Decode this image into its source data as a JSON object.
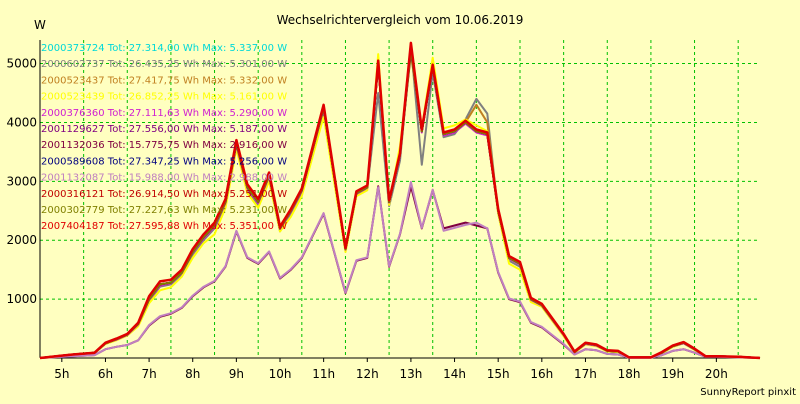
{
  "chart_data": {
    "type": "line",
    "title": "Wechselrichtervergleich vom 10.06.2019",
    "ylabel": "W",
    "xlabel": "",
    "footer": "SunnyReport pinxit",
    "ylim": [
      0,
      5400
    ],
    "xlim": [
      4.5,
      21
    ],
    "grid": true,
    "legend_position": "top-left",
    "yticks": [
      1000,
      2000,
      3000,
      4000,
      5000
    ],
    "xticks": [
      {
        "v": 5,
        "label": "5h"
      },
      {
        "v": 6,
        "label": "6h"
      },
      {
        "v": 7,
        "label": "7h"
      },
      {
        "v": 8,
        "label": "8h"
      },
      {
        "v": 9,
        "label": "9h"
      },
      {
        "v": 10,
        "label": "10h"
      },
      {
        "v": 11,
        "label": "11h"
      },
      {
        "v": 12,
        "label": "12h"
      },
      {
        "v": 13,
        "label": "13h"
      },
      {
        "v": 14,
        "label": "14h"
      },
      {
        "v": 15,
        "label": "15h"
      },
      {
        "v": 16,
        "label": "16h"
      },
      {
        "v": 17,
        "label": "17h"
      },
      {
        "v": 18,
        "label": "18h"
      },
      {
        "v": 19,
        "label": "19h"
      },
      {
        "v": 20,
        "label": "20h"
      }
    ],
    "x": [
      4.5,
      5.0,
      5.25,
      5.75,
      6.0,
      6.25,
      6.5,
      6.75,
      7.0,
      7.25,
      7.5,
      7.75,
      8.0,
      8.25,
      8.5,
      8.75,
      9.0,
      9.25,
      9.5,
      9.75,
      10.0,
      10.25,
      10.5,
      11.0,
      11.5,
      11.75,
      12.0,
      12.25,
      12.5,
      12.75,
      13.0,
      13.25,
      13.5,
      13.75,
      14.0,
      14.25,
      14.5,
      14.75,
      15.0,
      15.25,
      15.5,
      15.75,
      16.0,
      16.5,
      16.75,
      17.0,
      17.25,
      17.5,
      17.75,
      18.0,
      18.5,
      18.75,
      19.0,
      19.25,
      19.5,
      19.75,
      20.0,
      20.5,
      21.0
    ],
    "series": [
      {
        "name": "2000373724 Tot: 27.314,00 Wh Max: 5.337,00 W",
        "color": "#00d8d8",
        "values": [
          0,
          40,
          60,
          90,
          250,
          320,
          400,
          580,
          1000,
          1250,
          1280,
          1450,
          1800,
          2050,
          2250,
          2650,
          3650,
          2900,
          2650,
          3100,
          2200,
          2500,
          2850,
          4250,
          1850,
          2800,
          2900,
          5000,
          2650,
          3450,
          5337,
          3850,
          4950,
          3800,
          3850,
          4000,
          3850,
          3800,
          2500,
          1700,
          1600,
          1000,
          900,
          400,
          100,
          250,
          220,
          120,
          110,
          10,
          10,
          90,
          200,
          260,
          150,
          30,
          30,
          20,
          0
        ]
      },
      {
        "name": "2000602737 Tot: 26.435,25 Wh Max: 5.301,00 W",
        "color": "#808080",
        "values": [
          0,
          40,
          60,
          80,
          240,
          310,
          390,
          560,
          970,
          1210,
          1250,
          1420,
          1760,
          2000,
          2200,
          2600,
          3600,
          2850,
          2600,
          3050,
          2150,
          2450,
          2800,
          4200,
          1820,
          2780,
          2880,
          4500,
          2580,
          3350,
          5301,
          3280,
          4850,
          3750,
          3800,
          4050,
          4400,
          4150,
          2450,
          1650,
          1550,
          960,
          880,
          380,
          90,
          240,
          210,
          110,
          100,
          10,
          10,
          80,
          190,
          250,
          140,
          30,
          30,
          20,
          0
        ]
      },
      {
        "name": "2000523437 Tot: 27.417,75 Wh Max: 5.332,00 W",
        "color": "#c08020",
        "values": [
          0,
          40,
          60,
          90,
          250,
          320,
          400,
          580,
          1000,
          1250,
          1280,
          1450,
          1800,
          2050,
          2250,
          2650,
          3650,
          2900,
          2650,
          3100,
          2200,
          2500,
          2850,
          4250,
          1850,
          2800,
          2900,
          5000,
          2650,
          3450,
          5332,
          3850,
          4950,
          3800,
          3850,
          4000,
          4300,
          4000,
          2500,
          1700,
          1600,
          1000,
          900,
          400,
          100,
          250,
          220,
          120,
          110,
          10,
          10,
          90,
          200,
          260,
          150,
          30,
          30,
          20,
          0
        ]
      },
      {
        "name": "2000523439 Tot: 26.852,25 Wh Max: 5.161,00 W",
        "color": "#ffff00",
        "values": [
          0,
          40,
          55,
          85,
          240,
          300,
          380,
          540,
          930,
          1150,
          1200,
          1380,
          1700,
          1950,
          2100,
          2550,
          3550,
          2800,
          2550,
          3000,
          2150,
          2400,
          2750,
          4100,
          1800,
          2750,
          2850,
          5161,
          2600,
          3600,
          5150,
          3900,
          5100,
          3900,
          3950,
          4050,
          3950,
          3850,
          2450,
          1600,
          1500,
          950,
          870,
          370,
          90,
          230,
          200,
          110,
          100,
          10,
          10,
          80,
          190,
          250,
          140,
          30,
          30,
          20,
          0
        ]
      },
      {
        "name": "2000376360 Tot: 27.111,63 Wh Max: 5.290,00 W",
        "color": "#d020d0",
        "values": [
          0,
          40,
          60,
          90,
          250,
          310,
          390,
          570,
          990,
          1230,
          1270,
          1440,
          1790,
          2030,
          2230,
          2630,
          3620,
          2880,
          2630,
          3080,
          2190,
          2480,
          2830,
          4230,
          1840,
          2790,
          2890,
          4980,
          2640,
          3430,
          5290,
          3830,
          4930,
          3780,
          3830,
          3980,
          3830,
          3780,
          2490,
          1690,
          1590,
          990,
          890,
          390,
          100,
          240,
          210,
          120,
          110,
          10,
          10,
          90,
          200,
          250,
          150,
          30,
          30,
          20,
          0
        ]
      },
      {
        "name": "2001129627 Tot: 27.556,00 Wh Max: 5.187,00 W",
        "color": "#800080",
        "values": [
          0,
          40,
          60,
          90,
          250,
          320,
          400,
          580,
          1000,
          1250,
          1280,
          1450,
          1800,
          2050,
          2250,
          2650,
          3650,
          2900,
          2650,
          3100,
          2200,
          2500,
          2850,
          4250,
          1850,
          2800,
          2900,
          5000,
          2650,
          3450,
          5187,
          3850,
          4950,
          3800,
          3850,
          4000,
          3850,
          3800,
          2500,
          1700,
          1600,
          1000,
          900,
          400,
          100,
          250,
          220,
          120,
          110,
          10,
          10,
          90,
          200,
          260,
          150,
          30,
          30,
          20,
          0
        ]
      },
      {
        "name": "2001132036 Tot: 15.775,75 Wh Max: 2.916,00 W",
        "color": "#800040",
        "values": [
          0,
          20,
          30,
          50,
          150,
          190,
          220,
          300,
          550,
          700,
          750,
          850,
          1050,
          1200,
          1300,
          1550,
          2150,
          1700,
          1600,
          1800,
          1350,
          1500,
          1700,
          2450,
          1100,
          1650,
          1700,
          2916,
          1550,
          2100,
          2916,
          2200,
          2850,
          2200,
          2250,
          2300,
          2250,
          2200,
          1450,
          1000,
          950,
          600,
          520,
          230,
          60,
          150,
          130,
          70,
          60,
          5,
          5,
          50,
          120,
          150,
          90,
          20,
          20,
          10,
          0
        ]
      },
      {
        "name": "2000589608 Tot: 27.347,25 Wh Max: 5.256,00 W",
        "color": "#000080",
        "values": [
          0,
          40,
          60,
          90,
          250,
          320,
          400,
          580,
          1000,
          1250,
          1280,
          1450,
          1800,
          2050,
          2250,
          2650,
          3650,
          2900,
          2650,
          3100,
          2200,
          2500,
          2850,
          4250,
          1850,
          2800,
          2900,
          5000,
          2650,
          3450,
          5256,
          3850,
          4950,
          3800,
          3850,
          4000,
          3850,
          3800,
          2500,
          1700,
          1600,
          1000,
          900,
          400,
          100,
          250,
          220,
          120,
          110,
          10,
          10,
          90,
          200,
          260,
          150,
          30,
          30,
          20,
          0
        ]
      },
      {
        "name": "2001132087 Tot: 15.988,00 Wh Max: 2.988,00 W",
        "color": "#c080c0",
        "values": [
          0,
          20,
          30,
          50,
          150,
          190,
          220,
          300,
          560,
          710,
          760,
          860,
          1060,
          1210,
          1310,
          1560,
          2160,
          1710,
          1610,
          1810,
          1360,
          1510,
          1710,
          2460,
          1110,
          1660,
          1710,
          2900,
          1560,
          2110,
          2988,
          2210,
          2860,
          2160,
          2210,
          2260,
          2300,
          2200,
          1460,
          1010,
          960,
          610,
          530,
          240,
          60,
          150,
          130,
          70,
          60,
          5,
          5,
          50,
          120,
          150,
          90,
          20,
          20,
          10,
          0
        ]
      },
      {
        "name": "2000316121 Tot: 26.914,50 Wh Max: 5.251,00 W",
        "color": "#c00000",
        "values": [
          0,
          40,
          60,
          90,
          250,
          320,
          400,
          580,
          1000,
          1250,
          1280,
          1450,
          1800,
          2050,
          2250,
          2650,
          3650,
          2900,
          2650,
          3100,
          2200,
          2500,
          2850,
          4250,
          1850,
          2800,
          2900,
          5000,
          2650,
          3450,
          5251,
          3850,
          4950,
          3800,
          3850,
          4000,
          3850,
          3800,
          2500,
          1700,
          1600,
          1000,
          900,
          400,
          100,
          250,
          220,
          120,
          110,
          10,
          10,
          90,
          200,
          260,
          150,
          30,
          30,
          20,
          0
        ]
      },
      {
        "name": "2000302779 Tot: 27.227,63 Wh Max: 5.231,00 W",
        "color": "#808000",
        "values": [
          0,
          40,
          60,
          90,
          250,
          320,
          400,
          580,
          1000,
          1250,
          1280,
          1450,
          1800,
          2050,
          2250,
          2650,
          3650,
          2900,
          2650,
          3100,
          2200,
          2500,
          2850,
          4250,
          1850,
          2800,
          2900,
          5000,
          2650,
          3450,
          5231,
          3850,
          4950,
          3800,
          3850,
          4000,
          3850,
          3800,
          2500,
          1700,
          1600,
          1000,
          900,
          400,
          100,
          250,
          220,
          120,
          110,
          10,
          10,
          90,
          200,
          260,
          150,
          30,
          30,
          20,
          0
        ]
      },
      {
        "name": "2007404187 Tot: 27.595,88 Wh Max: 5.351,00 W",
        "color": "#e00000",
        "values": [
          0,
          40,
          60,
          90,
          260,
          330,
          410,
          600,
          1050,
          1300,
          1330,
          1500,
          1850,
          2100,
          2300,
          2700,
          3700,
          2950,
          2700,
          3150,
          2230,
          2530,
          2880,
          4300,
          1870,
          2830,
          2930,
          5050,
          2680,
          3480,
          5351,
          3880,
          4980,
          3830,
          3880,
          4030,
          3880,
          3830,
          2530,
          1730,
          1630,
          1020,
          920,
          410,
          110,
          260,
          230,
          130,
          120,
          10,
          10,
          100,
          210,
          270,
          160,
          30,
          30,
          20,
          0
        ]
      }
    ]
  }
}
